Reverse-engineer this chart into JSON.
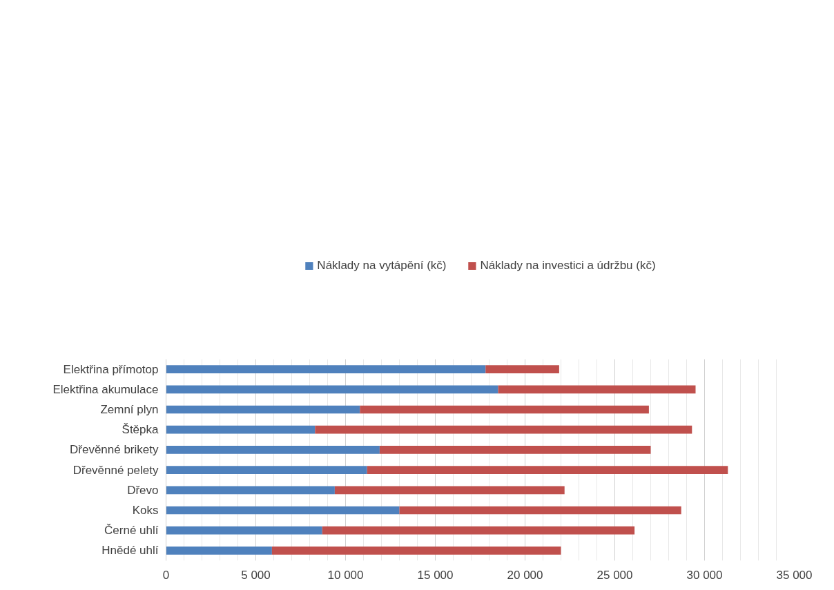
{
  "chart_data": {
    "type": "bar",
    "orientation": "horizontal",
    "stacked": true,
    "categories": [
      "Elektřina přímotop",
      "Elektřina akumulace",
      "Zemní plyn",
      "Štěpka",
      "Dřevěnné brikety",
      "Dřevěnné pelety",
      "Dřevo",
      "Koks",
      "Černé uhlí",
      "Hnědé uhlí"
    ],
    "series": [
      {
        "name": "Náklady na vytápění (kč)",
        "color": "#4f81bd",
        "values": [
          17800,
          18500,
          10800,
          8300,
          11900,
          11200,
          9400,
          13000,
          8700,
          5900
        ]
      },
      {
        "name": "Náklady na investici a údržbu (kč)",
        "color": "#c0504d",
        "values": [
          4100,
          11000,
          16100,
          21000,
          15100,
          20100,
          12800,
          15700,
          17400,
          16100
        ]
      }
    ],
    "xlim": [
      0,
      35000
    ],
    "xticks": [
      0,
      {
        "value": 5000,
        "label": "5 000"
      },
      {
        "value": 10000,
        "label": "10 000"
      },
      {
        "value": 15000,
        "label": "15 000"
      },
      {
        "value": 20000,
        "label": "20 000"
      },
      {
        "value": 25000,
        "label": "25 000"
      },
      {
        "value": 30000,
        "label": "30 000"
      },
      {
        "value": 35000,
        "label": "35 000"
      }
    ],
    "grid": "x",
    "legend": "top"
  }
}
